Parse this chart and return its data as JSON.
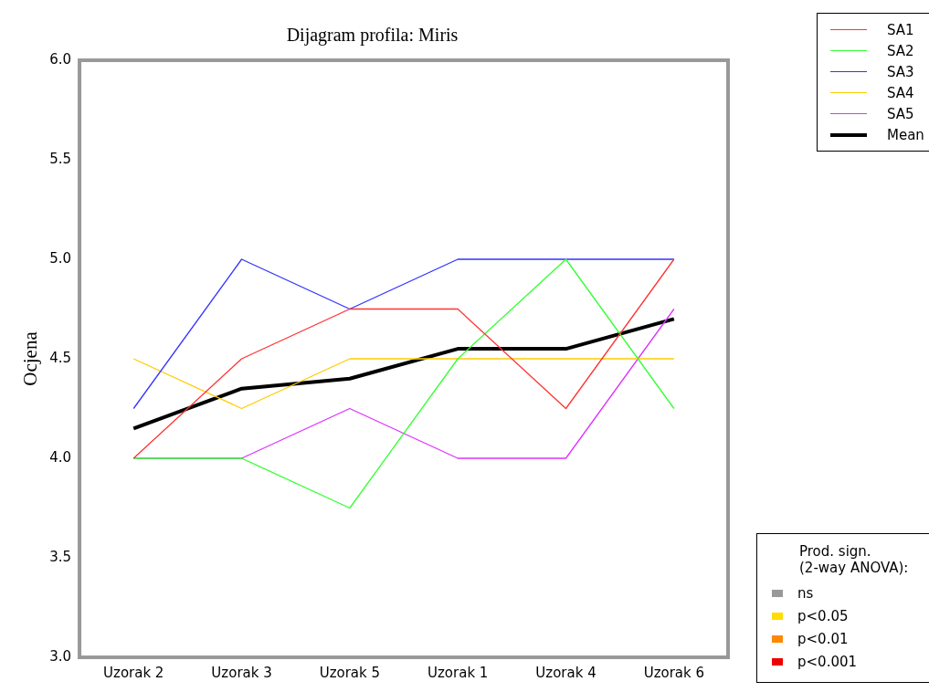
{
  "chart_data": {
    "type": "line",
    "title": "Dijagram profila: Miris",
    "ylabel": "Ocjena",
    "categories": [
      "Uzorak 2",
      "Uzorak 3",
      "Uzorak 5",
      "Uzorak 1",
      "Uzorak 4",
      "Uzorak 6"
    ],
    "series": [
      {
        "name": "SA1",
        "color": "#ff3333",
        "values": [
          4,
          4.5,
          4.75,
          4.75,
          4.25,
          5
        ]
      },
      {
        "name": "SA2",
        "color": "#33ff33",
        "values": [
          4,
          4,
          3.75,
          4.5,
          5,
          4.25
        ]
      },
      {
        "name": "SA3",
        "color": "#3333ff",
        "values": [
          4.25,
          5,
          4.75,
          5,
          5,
          5
        ]
      },
      {
        "name": "SA4",
        "color": "#ffcc00",
        "values": [
          4.5,
          4.25,
          4.5,
          4.5,
          4.5,
          4.5
        ]
      },
      {
        "name": "SA5",
        "color": "#dd33ff",
        "values": [
          4,
          4,
          4.25,
          4,
          4,
          4.75
        ]
      },
      {
        "name": "Mean",
        "color": "#000000",
        "values": [
          4.15,
          4.35,
          4.4,
          4.55,
          4.55,
          4.7
        ]
      }
    ],
    "ylim": [
      3,
      6
    ],
    "yticks": [
      {
        "value": 3,
        "label": "3.0"
      },
      {
        "value": 3.5,
        "label": "3.5"
      },
      {
        "value": 4,
        "label": "4.0"
      },
      {
        "value": 4.5,
        "label": "4.5"
      },
      {
        "value": 5,
        "label": "5.0"
      },
      {
        "value": 5.5,
        "label": "5.5"
      },
      {
        "value": 6,
        "label": "6.0"
      }
    ],
    "grid": false,
    "legend": "top right",
    "marker": "none",
    "line_style": "solid",
    "annotations": [
      "Prod. sign.\n(2-way ANOVA):",
      "ns",
      "p<0.05",
      "p<0.01",
      "p<0.001"
    ]
  }
}
